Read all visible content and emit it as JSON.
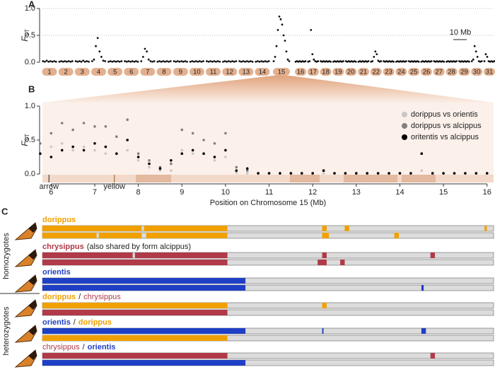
{
  "chart_data": [
    {
      "type": "manhattan",
      "label": "A",
      "ylabel": {
        "main": "F",
        "sub": "ST"
      },
      "ylim": [
        0,
        1
      ],
      "yticks": [
        {
          "value": 0,
          "label": "0.0"
        },
        {
          "value": 0.5,
          "label": "0.5"
        },
        {
          "value": 1,
          "label": "1.0"
        }
      ],
      "grid": true,
      "color": "#111",
      "scale_bar": "10 Mb",
      "chromosomes": [
        {
          "name": "1",
          "values": [
            0.02,
            0.01,
            0.03,
            0.01,
            0.02,
            0.01,
            0.02,
            0.01
          ]
        },
        {
          "name": "2",
          "values": [
            0.01,
            0.02,
            0.01,
            0.02,
            0.01,
            0.02,
            0.01,
            0.02
          ]
        },
        {
          "name": "3",
          "values": [
            0.02,
            0.01,
            0.02,
            0.01,
            0.03,
            0.01,
            0.02,
            0.01
          ]
        },
        {
          "name": "4",
          "values": [
            0.02,
            0.05,
            0.3,
            0.45,
            0.2,
            0.1,
            0.03,
            0.02
          ]
        },
        {
          "name": "5",
          "values": [
            0.01,
            0.02,
            0.01,
            0.02,
            0.01,
            0.02,
            0.01,
            0.02
          ]
        },
        {
          "name": "6",
          "values": [
            0.02,
            0.01,
            0.02,
            0.01,
            0.02,
            0.01,
            0.02,
            0.01
          ]
        },
        {
          "name": "7",
          "values": [
            0.02,
            0.1,
            0.25,
            0.2,
            0.05,
            0.02,
            0.01,
            0.02
          ]
        },
        {
          "name": "8",
          "values": [
            0.01,
            0.02,
            0.01,
            0.02,
            0.01,
            0.02,
            0.01,
            0.02
          ]
        },
        {
          "name": "9",
          "values": [
            0.02,
            0.01,
            0.02,
            0.01,
            0.02,
            0.01,
            0.02,
            0.01
          ]
        },
        {
          "name": "10",
          "values": [
            0.01,
            0.02,
            0.01,
            0.02,
            0.01,
            0.02,
            0.01,
            0.02
          ]
        },
        {
          "name": "11",
          "values": [
            0.02,
            0.01,
            0.02,
            0.01,
            0.02,
            0.01,
            0.02,
            0.01
          ]
        },
        {
          "name": "12",
          "values": [
            0.01,
            0.02,
            0.01,
            0.02,
            0.01,
            0.02,
            0.01,
            0.02
          ]
        },
        {
          "name": "13",
          "values": [
            0.02,
            0.01,
            0.02,
            0.01,
            0.02,
            0.01,
            0.02,
            0.01
          ]
        },
        {
          "name": "14",
          "values": [
            0.01,
            0.02,
            0.01,
            0.02,
            0.01,
            0.02,
            0.01,
            0.02
          ]
        },
        {
          "name": "15",
          "values": [
            0.02,
            0.1,
            0.3,
            0.6,
            0.85,
            0.8,
            0.7,
            0.5,
            0.4,
            0.2,
            0.05,
            0.02
          ]
        },
        {
          "name": "16",
          "values": [
            0.01,
            0.02,
            0.01,
            0.02,
            0.01,
            0.02,
            0.01,
            0.02
          ]
        },
        {
          "name": "17",
          "values": [
            0.01,
            0.02,
            0.6,
            0.15,
            0.05,
            0.02,
            0.01,
            0.02
          ]
        },
        {
          "name": "18",
          "values": [
            0.02,
            0.01,
            0.02,
            0.01,
            0.02,
            0.01,
            0.02,
            0.01
          ]
        },
        {
          "name": "19",
          "values": [
            0.01,
            0.02,
            0.01,
            0.02,
            0.01,
            0.02,
            0.01,
            0.02
          ]
        },
        {
          "name": "20",
          "values": [
            0.02,
            0.01,
            0.02,
            0.01,
            0.02,
            0.01,
            0.02,
            0.01
          ]
        },
        {
          "name": "21",
          "values": [
            0.01,
            0.02,
            0.01,
            0.02,
            0.01,
            0.02,
            0.01,
            0.02
          ]
        },
        {
          "name": "22",
          "values": [
            0.01,
            0.02,
            0.1,
            0.2,
            0.15,
            0.03,
            0.01,
            0.02
          ]
        },
        {
          "name": "23",
          "values": [
            0.02,
            0.01,
            0.02,
            0.01,
            0.02,
            0.01,
            0.02,
            0.01
          ]
        },
        {
          "name": "24",
          "values": [
            0.01,
            0.02,
            0.01,
            0.02,
            0.01,
            0.02,
            0.01,
            0.02
          ]
        },
        {
          "name": "25",
          "values": [
            0.02,
            0.01,
            0.02,
            0.01,
            0.02,
            0.01,
            0.02,
            0.01
          ]
        },
        {
          "name": "26",
          "values": [
            0.01,
            0.02,
            0.01,
            0.02,
            0.01,
            0.02,
            0.01,
            0.02
          ]
        },
        {
          "name": "27",
          "values": [
            0.02,
            0.01,
            0.02,
            0.01,
            0.02,
            0.01,
            0.02,
            0.01
          ]
        },
        {
          "name": "28",
          "values": [
            0.01,
            0.02,
            0.01,
            0.02,
            0.01,
            0.02,
            0.01,
            0.02
          ]
        },
        {
          "name": "29",
          "values": [
            0.02,
            0.01,
            0.02,
            0.01,
            0.02,
            0.01,
            0.02,
            0.01
          ]
        },
        {
          "name": "30",
          "values": [
            0.02,
            0.05,
            0.3,
            0.2,
            0.1,
            0.02,
            0.01,
            0.02
          ]
        },
        {
          "name": "31",
          "values": [
            0.02,
            0.15,
            0.1,
            0.02,
            0.01,
            0.02,
            0.01,
            0.02
          ]
        }
      ]
    },
    {
      "type": "scatter",
      "label": "B",
      "ylabel": {
        "main": "F",
        "sub": "ST"
      },
      "xlabel": "Position on Chromosome 15 (Mb)",
      "xlim": [
        5.8,
        16.15
      ],
      "ylim": [
        0,
        1
      ],
      "xticks": [
        6,
        7,
        8,
        9,
        10,
        11,
        12,
        13,
        14,
        15,
        16
      ],
      "yticks": [
        {
          "value": 0,
          "label": "0.0"
        },
        {
          "value": 0.5,
          "label": "0.5"
        },
        {
          "value": 1,
          "label": "1.0"
        }
      ],
      "annotations": [
        {
          "text": "arrow",
          "x": 5.95,
          "color": "#222"
        },
        {
          "text": "yellow",
          "x": 7.45,
          "color": "#9a5a1a"
        }
      ],
      "legend": "upper right",
      "x": [
        5.75,
        6,
        6.25,
        6.5,
        6.75,
        7,
        7.25,
        7.5,
        7.75,
        8,
        8.25,
        8.5,
        8.75,
        9,
        9.25,
        9.5,
        9.75,
        10,
        10.25,
        10.5,
        10.75,
        11,
        11.25,
        11.5,
        11.75,
        12,
        12.25,
        12.5,
        12.75,
        13,
        13.25,
        13.5,
        13.75,
        14,
        14.25,
        14.5,
        14.75,
        15,
        15.25,
        15.5,
        15.75,
        16
      ],
      "series": [
        {
          "name": "dorippus vs orientis",
          "color": "#c8c8c8",
          "values": [
            0.45,
            0.4,
            0.45,
            0.35,
            0.4,
            0.35,
            0.3,
            0.3,
            0.35,
            0.2,
            0.1,
            0.05,
            0.05,
            0.35,
            0.3,
            0.3,
            0.2,
            0.25,
            0.02,
            0.01,
            0.01,
            0.01,
            0.01,
            0.01,
            0.01,
            0.01,
            0.01,
            0.01,
            0.01,
            0.01,
            0.01,
            0.01,
            0.01,
            0.01,
            0.01,
            0.05,
            0.01,
            0.01,
            0.01,
            0.01,
            0.01,
            0.01
          ]
        },
        {
          "name": "dorippus vs alcippus",
          "color": "#808080",
          "values": [
            0.45,
            0.6,
            0.75,
            0.65,
            0.75,
            0.7,
            0.7,
            0.55,
            0.8,
            0.3,
            0.2,
            0.1,
            0.15,
            0.65,
            0.6,
            0.5,
            0.45,
            0.6,
            0.1,
            0.05,
            0.01,
            0.01,
            0.01,
            0.01,
            0.01,
            0.01,
            0.05,
            0.01,
            0.01,
            0.01,
            0.01,
            0.01,
            0.01,
            0.01,
            0.01,
            0.3,
            0.01,
            0.01,
            0.01,
            0.01,
            0.01,
            0.01
          ]
        },
        {
          "name": "oritentis vs alcippus",
          "color": "#000000",
          "values": [
            0.3,
            0.25,
            0.35,
            0.4,
            0.35,
            0.45,
            0.4,
            0.3,
            0.5,
            0.25,
            0.15,
            0.08,
            0.2,
            0.3,
            0.35,
            0.3,
            0.25,
            0.35,
            0.05,
            0.08,
            0.01,
            0.01,
            0.01,
            0.01,
            0.01,
            0.01,
            0.05,
            0.01,
            0.01,
            0.01,
            0.01,
            0.01,
            0.01,
            0.01,
            0.01,
            0.3,
            0.01,
            0.01,
            0.01,
            0.01,
            0.01,
            0.01
          ]
        }
      ]
    },
    {
      "type": "tracks",
      "label": "C",
      "groups": [
        "homozygotes",
        "heterozygotes"
      ],
      "xlim": [
        0,
        100
      ],
      "rows": [
        {
          "label": [
            {
              "text": "dorippus",
              "color": "#f0a000",
              "bold": true
            }
          ],
          "tracks": [
            {
              "color": "#f0a000",
              "segments": [
                [
                  0,
                  22
                ],
                [
                  22.5,
                  41
                ],
                [
                  62,
                  63
                ],
                [
                  67,
                  68
                ],
                [
                  98,
                  98.5
                ]
              ]
            },
            {
              "color": "#f0a000",
              "segments": [
                [
                  0,
                  12
                ],
                [
                  12.5,
                  22
                ],
                [
                  23,
                  41
                ],
                [
                  62,
                  63.5
                ],
                [
                  78,
                  79
                ]
              ]
            }
          ]
        },
        {
          "label": [
            {
              "text": "chrysippus",
              "color": "#b03a48",
              "bold": true
            },
            {
              "text": "(also shared by form alcippus)",
              "color": "#222",
              "bold": false
            }
          ],
          "tracks": [
            {
              "color": "#b03a48",
              "segments": [
                [
                  0,
                  20
                ],
                [
                  20.5,
                  41
                ],
                [
                  62,
                  63
                ],
                [
                  86,
                  87
                ]
              ]
            },
            {
              "color": "#b03a48",
              "segments": [
                [
                  0,
                  41
                ],
                [
                  61,
                  63
                ],
                [
                  66,
                  67
                ]
              ]
            }
          ]
        },
        {
          "label": [
            {
              "text": "orientis",
              "color": "#1f3fc4",
              "bold": true
            }
          ],
          "tracks": [
            {
              "color": "#1f3fc4",
              "segments": [
                [
                  0,
                  45
                ]
              ]
            },
            {
              "color": "#1f3fc4",
              "segments": [
                [
                  0,
                  45
                ],
                [
                  84,
                  84.5
                ]
              ]
            }
          ]
        },
        {
          "label": [
            {
              "text": "dorippus",
              "color": "#f0a000",
              "bold": true
            },
            {
              "text": "/",
              "color": "#222",
              "bold": false
            },
            {
              "text": "chrysippus",
              "color": "#b03a48",
              "bold": false
            }
          ],
          "tracks": [
            {
              "color": "#f0a000",
              "segments": [
                [
                  0,
                  41
                ],
                [
                  62,
                  63
                ]
              ]
            },
            {
              "color": "#b03a48",
              "segments": [
                [
                  0,
                  41
                ]
              ]
            }
          ]
        },
        {
          "label": [
            {
              "text": "orientis",
              "color": "#1f3fc4",
              "bold": true
            },
            {
              "text": "/",
              "color": "#222",
              "bold": false
            },
            {
              "text": "dorippus",
              "color": "#f0a000",
              "bold": true
            }
          ],
          "tracks": [
            {
              "color": "#1f3fc4",
              "segments": [
                [
                  0,
                  45
                ],
                [
                  62,
                  62.3
                ],
                [
                  84,
                  85
                ]
              ]
            },
            {
              "color": "#f0a000",
              "segments": [
                [
                  0,
                  41
                ]
              ]
            }
          ]
        },
        {
          "label": [
            {
              "text": "chrysippus",
              "color": "#b03a48",
              "bold": false
            },
            {
              "text": "/",
              "color": "#222",
              "bold": false
            },
            {
              "text": "orientis",
              "color": "#1f3fc4",
              "bold": true
            }
          ],
          "tracks": [
            {
              "color": "#b03a48",
              "segments": [
                [
                  0,
                  41
                ],
                [
                  86,
                  87
                ]
              ]
            },
            {
              "color": "#1f3fc4",
              "segments": [
                [
                  0,
                  45
                ]
              ]
            }
          ]
        }
      ]
    }
  ]
}
